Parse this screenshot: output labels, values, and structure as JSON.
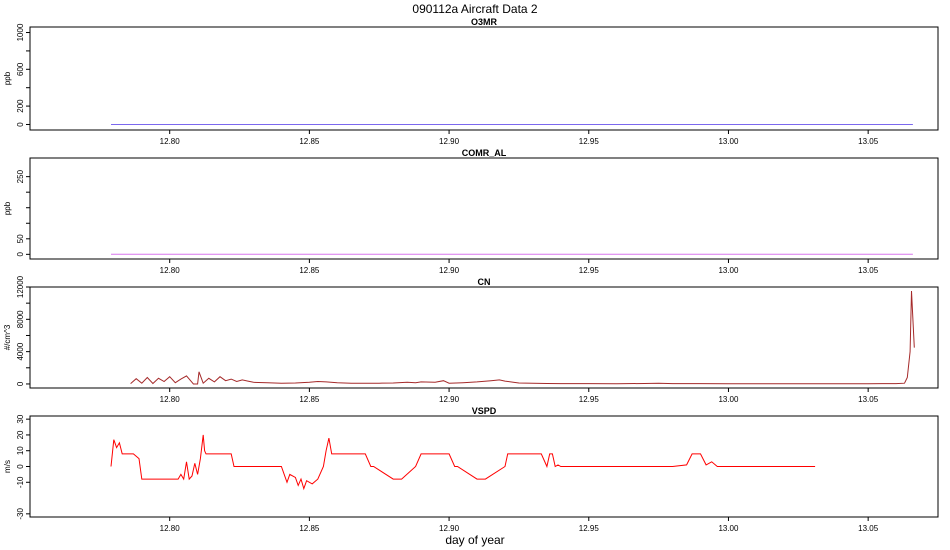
{
  "page": {
    "title": "090112a   Aircraft Data 2",
    "xlabel": "day of year"
  },
  "chart_data": [
    {
      "type": "line",
      "title": "O3MR",
      "ylabel": "ppb",
      "xlim": [
        12.75,
        13.075
      ],
      "ylim": [
        -60,
        1060
      ],
      "x_ticks": [
        12.8,
        12.85,
        12.9,
        12.95,
        13.0,
        13.05
      ],
      "y_ticks": [
        0,
        200,
        600,
        1000
      ],
      "y_minor_ticks": [
        400,
        800
      ],
      "series": [
        {
          "color": "#7b68ee",
          "x": [
            12.779,
            13.066
          ],
          "y": [
            0,
            0
          ]
        }
      ]
    },
    {
      "type": "line",
      "title": "COMR_AL",
      "ylabel": "ppb",
      "xlim": [
        12.75,
        13.075
      ],
      "ylim": [
        -15,
        310
      ],
      "x_ticks": [
        12.8,
        12.85,
        12.9,
        12.95,
        13.0,
        13.05
      ],
      "y_ticks": [
        0,
        50,
        250
      ],
      "y_minor_ticks": [
        100,
        150,
        200
      ],
      "series": [
        {
          "color": "#d877ee",
          "x": [
            12.779,
            13.066
          ],
          "y": [
            0,
            0
          ]
        }
      ]
    },
    {
      "type": "line",
      "title": "CN",
      "ylabel": "#/cm^3",
      "xlim": [
        12.75,
        13.075
      ],
      "ylim": [
        -500,
        12000
      ],
      "x_ticks": [
        12.8,
        12.85,
        12.9,
        12.95,
        13.0,
        13.05
      ],
      "y_ticks": [
        0,
        4000,
        8000,
        12000
      ],
      "y_minor_ticks": [
        2000,
        6000,
        10000
      ],
      "series": [
        {
          "color": "#a52a2a",
          "x": [
            12.786,
            12.788,
            12.79,
            12.792,
            12.794,
            12.796,
            12.798,
            12.8,
            12.802,
            12.804,
            12.806,
            12.808,
            12.8085,
            12.81,
            12.8105,
            12.812,
            12.814,
            12.816,
            12.818,
            12.82,
            12.822,
            12.824,
            12.826,
            12.828,
            12.83,
            12.835,
            12.84,
            12.845,
            12.85,
            12.853,
            12.856,
            12.86,
            12.865,
            12.87,
            12.875,
            12.88,
            12.885,
            12.888,
            12.89,
            12.895,
            12.898,
            12.9,
            12.905,
            12.91,
            12.915,
            12.918,
            12.92,
            12.923,
            12.925,
            12.93,
            12.935,
            12.94,
            12.95,
            12.96,
            12.97,
            12.975,
            12.98,
            12.99,
            13.0,
            13.01,
            13.02,
            13.03,
            13.04,
            13.05,
            13.055,
            13.06,
            13.063,
            13.064,
            13.065,
            13.0655,
            13.066,
            13.0665
          ],
          "y": [
            50,
            650,
            100,
            800,
            60,
            700,
            300,
            900,
            150,
            600,
            1000,
            200,
            0,
            0,
            1500,
            100,
            700,
            250,
            900,
            400,
            600,
            300,
            500,
            350,
            200,
            150,
            100,
            120,
            200,
            300,
            250,
            150,
            100,
            80,
            90,
            120,
            200,
            150,
            250,
            200,
            400,
            100,
            150,
            250,
            400,
            500,
            350,
            200,
            120,
            80,
            60,
            50,
            40,
            30,
            60,
            80,
            50,
            40,
            30,
            30,
            25,
            20,
            20,
            30,
            50,
            40,
            100,
            800,
            4000,
            11500,
            8000,
            4500
          ]
        }
      ]
    },
    {
      "type": "line",
      "title": "VSPD",
      "ylabel": "m/s",
      "xlim": [
        12.75,
        13.075
      ],
      "ylim": [
        -32,
        32
      ],
      "x_ticks": [
        12.8,
        12.85,
        12.9,
        12.95,
        13.0,
        13.05
      ],
      "y_ticks": [
        -30,
        -10,
        0,
        10,
        20,
        30
      ],
      "series": [
        {
          "color": "#ff0000",
          "x": [
            12.779,
            12.78,
            12.781,
            12.782,
            12.783,
            12.784,
            12.785,
            12.787,
            12.789,
            12.79,
            12.793,
            12.794,
            12.795,
            12.797,
            12.8,
            12.803,
            12.804,
            12.805,
            12.806,
            12.807,
            12.808,
            12.809,
            12.81,
            12.811,
            12.812,
            12.8125,
            12.813,
            12.815,
            12.82,
            12.822,
            12.823,
            12.83,
            12.838,
            12.84,
            12.841,
            12.842,
            12.843,
            12.845,
            12.846,
            12.847,
            12.848,
            12.849,
            12.851,
            12.853,
            12.855,
            12.856,
            12.857,
            12.858,
            12.86,
            12.87,
            12.872,
            12.873,
            12.88,
            12.882,
            12.883,
            12.888,
            12.89,
            12.892,
            12.9,
            12.902,
            12.903,
            12.91,
            12.912,
            12.913,
            12.92,
            12.921,
            12.922,
            12.925,
            12.933,
            12.935,
            12.936,
            12.937,
            12.938,
            12.939,
            12.94,
            12.942,
            12.95,
            12.96,
            12.97,
            12.98,
            12.985,
            12.987,
            12.988,
            12.99,
            12.992,
            12.994,
            12.996,
            13.0,
            13.01,
            13.02,
            13.031
          ],
          "y": [
            0,
            17,
            12,
            15,
            8,
            8,
            8,
            8,
            5,
            -8,
            -8,
            -8,
            -8,
            -8,
            -8,
            -8,
            -5,
            -8,
            3,
            -8,
            -6,
            2,
            -5,
            5,
            20,
            10,
            8,
            8,
            8,
            8,
            0,
            0,
            0,
            0,
            -5,
            -10,
            -5,
            -7,
            -12,
            -8,
            -14,
            -9,
            -11,
            -8,
            0,
            10,
            18,
            8,
            8,
            8,
            0,
            0,
            -8,
            -8,
            -8,
            0,
            8,
            8,
            8,
            0,
            0,
            -8,
            -8,
            -8,
            0,
            8,
            8,
            8,
            8,
            0,
            8,
            8,
            0,
            1,
            0,
            0,
            0,
            0,
            0,
            0,
            1,
            8,
            8,
            8,
            1,
            3,
            0,
            0,
            0,
            0,
            0
          ]
        }
      ]
    }
  ]
}
